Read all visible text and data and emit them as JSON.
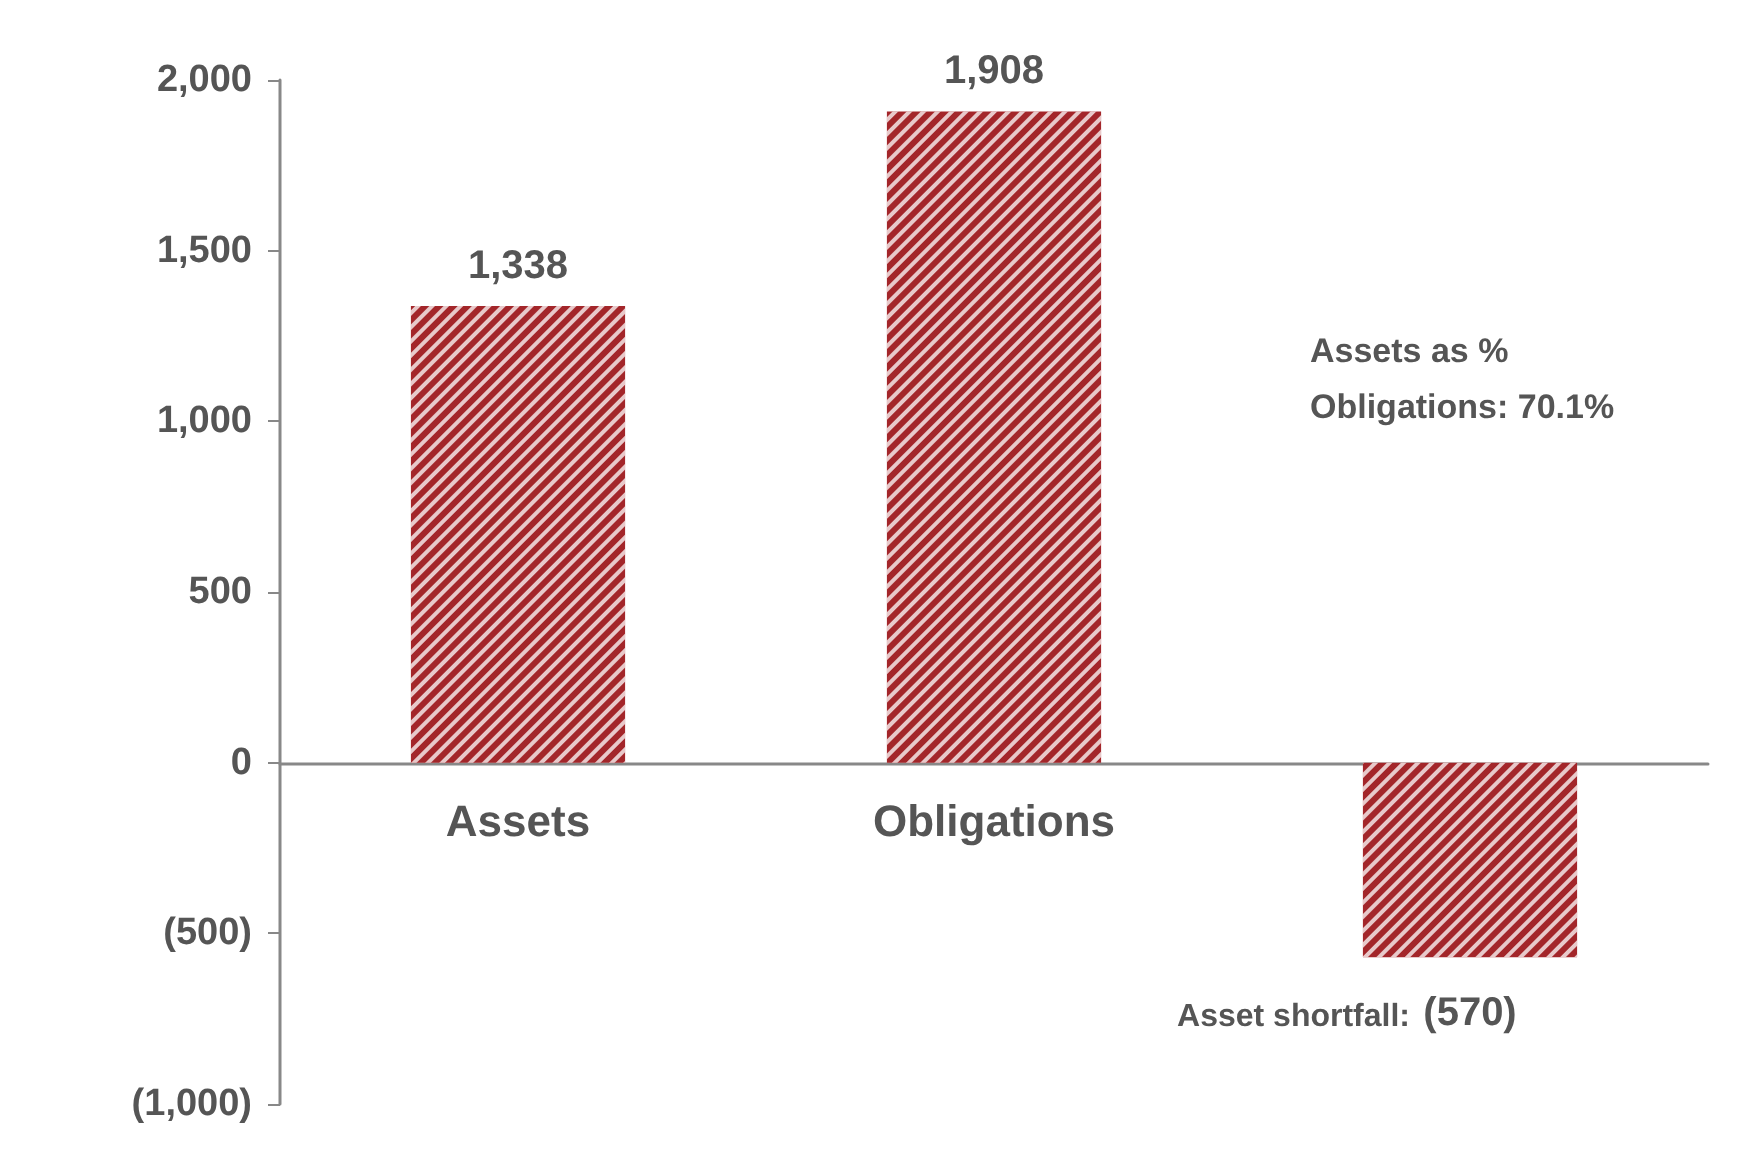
{
  "chart_data": {
    "type": "bar",
    "categories": [
      "Assets",
      "Obligations",
      null
    ],
    "values": [
      1338,
      1908,
      -570
    ],
    "value_labels": [
      "1,338",
      "1,908",
      "(570)"
    ],
    "color": "#a3262a",
    "ylim": [
      -1000,
      2000
    ],
    "yticks": [
      {
        "value": -1000,
        "label": "(1,000)"
      },
      {
        "value": -500,
        "label": "(500)"
      },
      0,
      500,
      {
        "value": 1000,
        "label": "1,000"
      },
      {
        "value": 1500,
        "label": "1,500"
      },
      {
        "value": 2000,
        "label": "2,000"
      }
    ],
    "grid": false,
    "annotations": [
      "Assets as %\nObligations: 70.1%",
      "Asset shortfall:"
    ]
  }
}
